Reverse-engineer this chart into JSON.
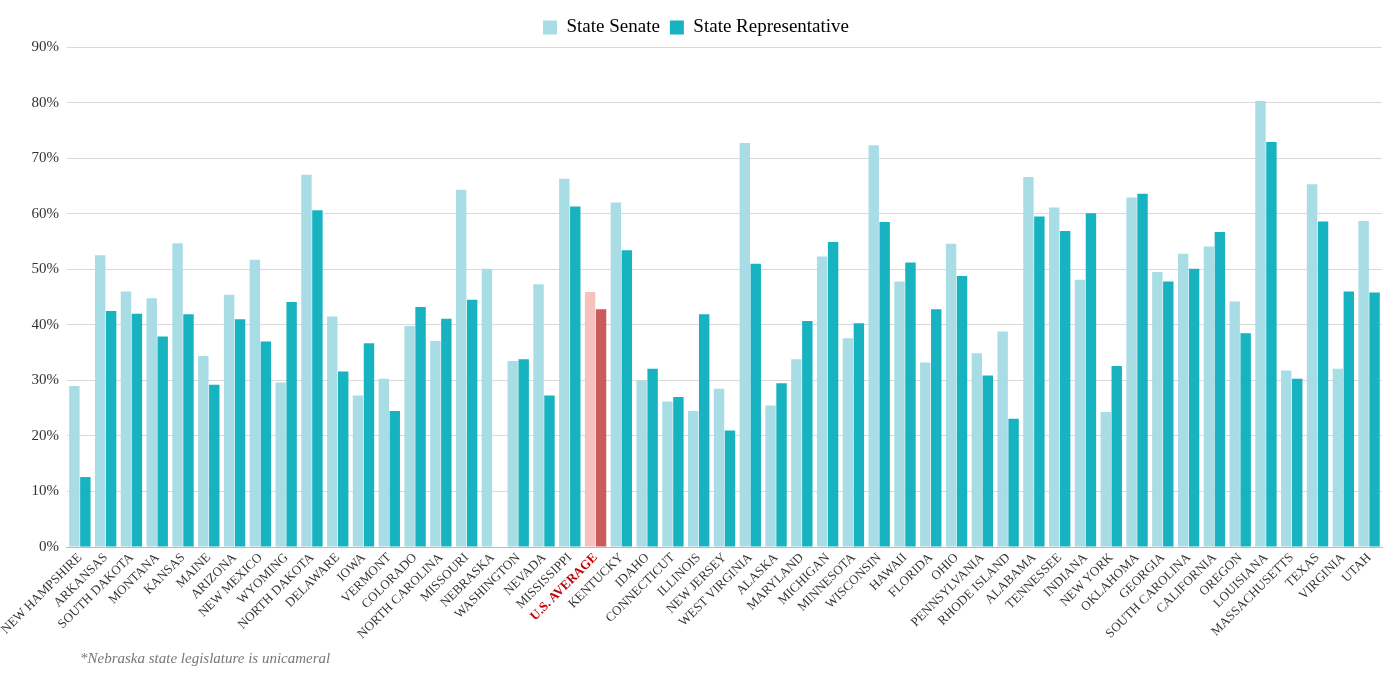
{
  "chart_data": {
    "type": "bar",
    "categories": [
      "NEW HAMPSHIRE",
      "ARKANSAS",
      "SOUTH DAKOTA",
      "MONTANA",
      "KANSAS",
      "MAINE",
      "ARIZONA",
      "NEW MEXICO",
      "WYOMING",
      "NORTH DAKOTA",
      "DELAWARE",
      "IOWA",
      "VERMONT",
      "COLORADO",
      "NORTH CAROLINA",
      "MISSOURI",
      "NEBRASKA",
      "WASHINGTON",
      "NEVADA",
      "MISSISSIPPI",
      "U.S. AVERAGE",
      "KENTUCKY",
      "IDAHO",
      "CONNECTICUT",
      "ILLINOIS",
      "NEW JERSEY",
      "WEST VIRGINIA",
      "ALASKA",
      "MARYLAND",
      "MICHIGAN",
      "MINNESOTA",
      "WISCONSIN",
      "HAWAII",
      "FLORIDA",
      "OHIO",
      "PENNSYLVANIA",
      "RHODE ISLAND",
      "ALABAMA",
      "TENNESSEE",
      "INDIANA",
      "NEW YORK",
      "OKLAHOMA",
      "GEORGIA",
      "SOUTH CAROLINA",
      "CALIFORNIA",
      "OREGON",
      "LOUISIANA",
      "MASSACHUSETTS",
      "TEXAS",
      "VIRGINIA",
      "UTAH"
    ],
    "series": [
      {
        "name": "State Senate",
        "color": "#a8dde6",
        "colors": [
          "#a8dde6",
          "#a8dde6",
          "#a8dde6",
          "#a8dde6",
          "#a8dde6",
          "#a8dde6",
          "#a8dde6",
          "#a8dde6",
          "#a8dde6",
          "#a8dde6",
          "#a8dde6",
          "#a8dde6",
          "#a8dde6",
          "#a8dde6",
          "#a8dde6",
          "#a8dde6",
          "#a8dde6",
          "#a8dde6",
          "#a8dde6",
          "#a8dde6",
          "#f7c1bd",
          "#a8dde6",
          "#a8dde6",
          "#a8dde6",
          "#a8dde6",
          "#a8dde6",
          "#a8dde6",
          "#a8dde6",
          "#a8dde6",
          "#a8dde6",
          "#a8dde6",
          "#a8dde6",
          "#a8dde6",
          "#a8dde6",
          "#a8dde6",
          "#a8dde6",
          "#a8dde6",
          "#a8dde6",
          "#a8dde6",
          "#a8dde6",
          "#a8dde6",
          "#a8dde6",
          "#a8dde6",
          "#a8dde6",
          "#a8dde6",
          "#a8dde6",
          "#a8dde6",
          "#a8dde6",
          "#a8dde6",
          "#a8dde6",
          "#a8dde6"
        ],
        "values": [
          29,
          52.5,
          46,
          44.8,
          54.7,
          34.4,
          45.4,
          51.7,
          29.6,
          67,
          41.5,
          27.3,
          30.3,
          39.8,
          37.1,
          64.3,
          50.1,
          33.5,
          47.3,
          66.3,
          45.9,
          62,
          30,
          26.2,
          24.5,
          28.5,
          72.7,
          25.5,
          33.8,
          52.3,
          37.6,
          72.3,
          47.8,
          33.2,
          54.6,
          34.9,
          38.8,
          66.6,
          61.1,
          48.1,
          24.3,
          62.9,
          49.5,
          52.8,
          54.1,
          44.2,
          80.3,
          31.8,
          65.3,
          32.1,
          58.7
        ]
      },
      {
        "name": "State Representative",
        "color": "#17b3c1",
        "colors": [
          "#17b3c1",
          "#17b3c1",
          "#17b3c1",
          "#17b3c1",
          "#17b3c1",
          "#17b3c1",
          "#17b3c1",
          "#17b3c1",
          "#17b3c1",
          "#17b3c1",
          "#17b3c1",
          "#17b3c1",
          "#17b3c1",
          "#17b3c1",
          "#17b3c1",
          "#17b3c1",
          "#17b3c1",
          "#17b3c1",
          "#17b3c1",
          "#17b3c1",
          "#c95c5c",
          "#17b3c1",
          "#17b3c1",
          "#17b3c1",
          "#17b3c1",
          "#17b3c1",
          "#17b3c1",
          "#17b3c1",
          "#17b3c1",
          "#17b3c1",
          "#17b3c1",
          "#17b3c1",
          "#17b3c1",
          "#17b3c1",
          "#17b3c1",
          "#17b3c1",
          "#17b3c1",
          "#17b3c1",
          "#17b3c1",
          "#17b3c1",
          "#17b3c1",
          "#17b3c1",
          "#17b3c1",
          "#17b3c1",
          "#17b3c1",
          "#17b3c1",
          "#17b3c1",
          "#17b3c1",
          "#17b3c1",
          "#17b3c1",
          "#17b3c1"
        ],
        "values": [
          12.6,
          42.5,
          42,
          37.9,
          41.9,
          29.2,
          41,
          37,
          44.1,
          60.6,
          31.6,
          36.7,
          24.5,
          43.2,
          41.1,
          44.5,
          null,
          33.8,
          27.3,
          61.3,
          42.8,
          53.4,
          32.1,
          27,
          41.9,
          21,
          51,
          29.5,
          40.7,
          54.9,
          40.3,
          58.5,
          51.2,
          42.8,
          48.8,
          30.9,
          23.1,
          59.5,
          56.9,
          60.1,
          32.6,
          63.6,
          47.8,
          50.1,
          56.7,
          38.5,
          72.9,
          30.3,
          58.6,
          46,
          45.8
        ]
      }
    ],
    "ylim": [
      0,
      90
    ],
    "yticks": [
      {
        "value": 0,
        "label": "0%"
      },
      {
        "value": 10,
        "label": "10%"
      },
      {
        "value": 20,
        "label": "20%"
      },
      {
        "value": 30,
        "label": "30%"
      },
      {
        "value": 40,
        "label": "40%"
      },
      {
        "value": 50,
        "label": "50%"
      },
      {
        "value": 60,
        "label": "60%"
      },
      {
        "value": 70,
        "label": "70%"
      },
      {
        "value": 80,
        "label": "80%"
      },
      {
        "value": 90,
        "label": "90%"
      }
    ],
    "grid": "y",
    "legend": "top",
    "annotations": [
      "*Nebraska state legislature is unicameral"
    ]
  }
}
